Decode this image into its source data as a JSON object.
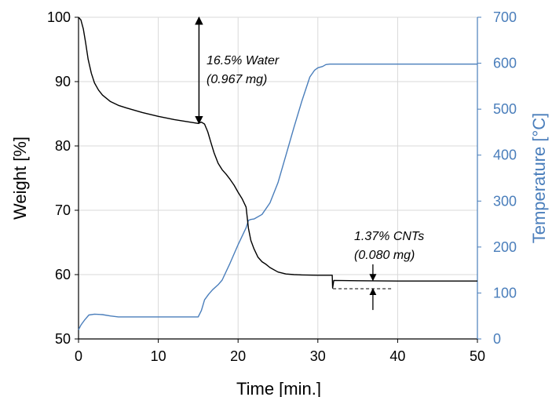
{
  "chart_data": {
    "type": "line",
    "title": "",
    "xlabel": "Time [min.]",
    "ylabel": "Weight [%]",
    "y2label": "Temperature [°C]",
    "xlim": [
      0,
      50
    ],
    "ylim": [
      50,
      100
    ],
    "y2lim": [
      0,
      700
    ],
    "xticks": [
      0,
      10,
      20,
      30,
      40,
      50
    ],
    "yticks": [
      50,
      60,
      70,
      80,
      90,
      100
    ],
    "y2ticks": [
      0,
      100,
      200,
      300,
      400,
      500,
      600,
      700
    ],
    "grid": true,
    "legend": "none",
    "colors": {
      "weight": "#000000",
      "temperature": "#4a7ebb",
      "grid": "#d9d9d9"
    },
    "series": [
      {
        "axis": "left",
        "x": [
          0,
          0.3,
          0.6,
          0.9,
          1.2,
          1.6,
          2.0,
          2.5,
          3.0,
          4.0,
          5.0,
          6.0,
          8.0,
          10.0,
          12.0,
          14.0,
          15.0,
          15.4,
          15.8,
          16.2,
          16.6,
          17.0,
          17.5,
          18.0,
          18.5,
          19.0,
          19.5,
          20.0,
          20.5,
          21.0,
          21.3,
          21.6,
          22.0,
          22.5,
          23.0,
          23.5,
          24.0,
          25.0,
          26.0,
          27.0,
          28.0,
          30.0,
          31.8,
          31.85,
          32.0,
          35.0,
          40.0,
          45.0,
          50.0
        ],
        "y": [
          100,
          99.6,
          98.2,
          96.0,
          93.5,
          91.3,
          89.8,
          88.7,
          87.9,
          86.9,
          86.3,
          85.9,
          85.2,
          84.6,
          84.1,
          83.7,
          83.5,
          83.7,
          83.4,
          82.2,
          80.5,
          78.9,
          77.3,
          76.3,
          75.6,
          74.8,
          73.9,
          72.8,
          71.8,
          70.5,
          67.2,
          65.3,
          64.0,
          62.7,
          62.0,
          61.6,
          61.1,
          60.4,
          60.1,
          60.0,
          59.95,
          59.9,
          59.9,
          57.9,
          59.1,
          59.05,
          59.0,
          59.0,
          59.0
        ]
      },
      {
        "axis": "right",
        "x": [
          0,
          0.3,
          0.8,
          1.3,
          2.0,
          3.0,
          4.0,
          5.0,
          7.0,
          10.0,
          13.0,
          15.0,
          15.4,
          15.8,
          16.3,
          16.8,
          17.5,
          18.0,
          19.0,
          20.0,
          21.0,
          21.3,
          21.6,
          22.0,
          23.0,
          24.0,
          25.0,
          26.0,
          27.0,
          28.0,
          29.0,
          29.6,
          30.0,
          30.6,
          31.0,
          31.5,
          32.0,
          35.0,
          40.0,
          45.0,
          50.0
        ],
        "y": [
          20,
          30,
          42,
          52,
          54,
          53,
          50,
          48,
          48,
          48,
          48,
          48,
          62,
          85,
          97,
          107,
          118,
          128,
          165,
          205,
          242,
          258,
          260,
          261,
          271,
          296,
          340,
          400,
          460,
          518,
          570,
          585,
          590,
          593,
          597,
          598,
          598,
          598,
          598,
          598,
          598
        ]
      }
    ],
    "annotations": {
      "water_line1": "16.5% Water",
      "water_line2": "(0.967 mg)",
      "cnt_line1": "1.37% CNTs",
      "cnt_line2": "(0.080 mg)"
    }
  }
}
